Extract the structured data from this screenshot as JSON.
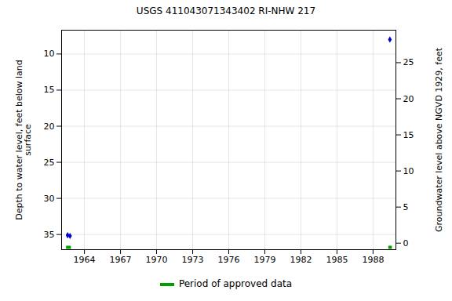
{
  "chart_data": {
    "type": "scatter",
    "title": "USGS 411043071343402 RI-NHW  217",
    "y_label": "Depth to water level, feet below land\nsurface",
    "y2_label": "Groundwater level above NGVD 1929, feet",
    "x": [
      1962.6,
      1962.8,
      1989.4
    ],
    "values": [
      35.1,
      35.2,
      8.0
    ],
    "color": "#0000cc",
    "marker": "diamond",
    "xlim": [
      1962.1,
      1989.9
    ],
    "xticks": [
      1964,
      1967,
      1970,
      1973,
      1976,
      1979,
      1982,
      1985,
      1988
    ],
    "ylim": [
      37.1,
      6.7
    ],
    "yticks": [
      10,
      15,
      20,
      25,
      30,
      35
    ],
    "y2lim": [
      -0.9,
      29.5
    ],
    "y2ticks": [
      0,
      5,
      10,
      15,
      20,
      25
    ],
    "grid": true,
    "approved_periods": {
      "name": "Period of approved data",
      "color": "#00a000",
      "x1": [
        1962.5,
        1989.3
      ],
      "x2": [
        1962.9,
        1989.6
      ]
    }
  }
}
